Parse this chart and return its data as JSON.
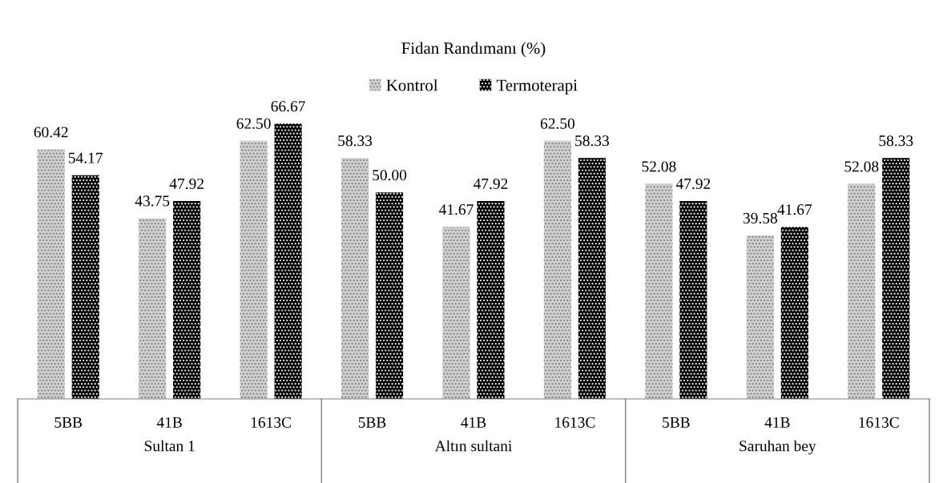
{
  "chart_data": {
    "type": "bar",
    "title": "Fidan Randımanı (%)",
    "legend": "top",
    "categories": [
      "5BB",
      "41B",
      "1613C",
      "5BB",
      "41B",
      "1613C",
      "5BB",
      "41B",
      "1613C"
    ],
    "series": [
      {
        "name": "Kontrol",
        "color": "#d0d0d0",
        "values": [
          60.42,
          43.75,
          62.5,
          58.33,
          41.67,
          62.5,
          52.08,
          39.58,
          52.08
        ],
        "value_labels": [
          "60.42",
          "43.75",
          "62.50",
          "58.33",
          "41.67",
          "62.50",
          "52.08",
          "39.58",
          "52.08"
        ]
      },
      {
        "name": "Termoterapi",
        "color": "#000000",
        "values": [
          54.17,
          47.92,
          66.67,
          50.0,
          47.92,
          58.33,
          47.92,
          41.67,
          58.33
        ],
        "value_labels": [
          "54.17",
          "47.92",
          "66.67",
          "50.00",
          "47.92",
          "58.33",
          "47.92",
          "41.67",
          "58.33"
        ]
      }
    ],
    "annotations": [
      "Sultan 1",
      "Altın sultani",
      "Saruhan bey"
    ]
  }
}
